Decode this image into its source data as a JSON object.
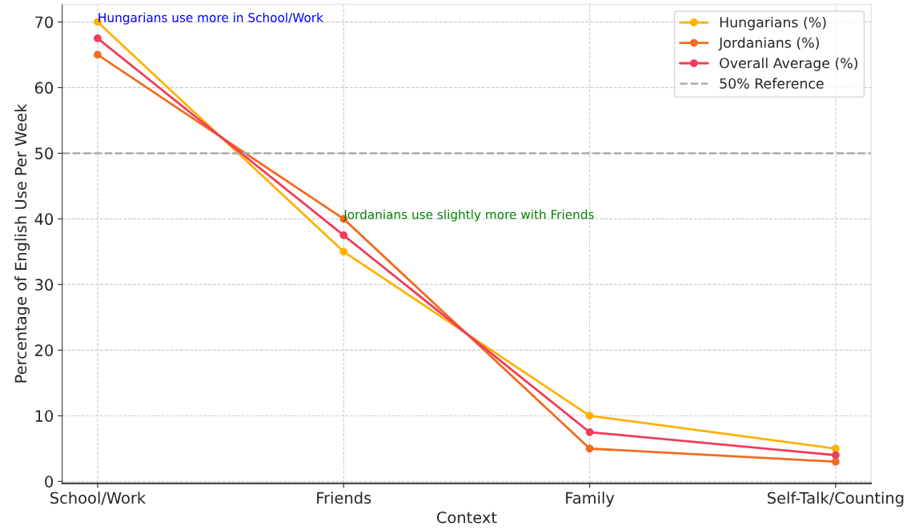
{
  "chart_data": {
    "type": "line",
    "xlabel": "Context",
    "ylabel": "Percentage of English Use Per Week",
    "categories": [
      "School/Work",
      "Friends",
      "Family",
      "Self-Talk/Counting"
    ],
    "series": [
      {
        "name": "Hungarians (%)",
        "color": "#ffb000",
        "values": [
          70,
          35,
          10,
          5
        ]
      },
      {
        "name": "Jordanians (%)",
        "color": "#f26b21",
        "values": [
          65,
          40,
          5,
          3
        ]
      },
      {
        "name": "Overall Average (%)",
        "color": "#f23c5a",
        "values": [
          67.5,
          37.5,
          7.5,
          4
        ]
      }
    ],
    "ylim": [
      -0.3,
      72.7
    ],
    "yticks": [
      0,
      10,
      20,
      30,
      40,
      50,
      60,
      70
    ],
    "ref_lines": [
      {
        "axis": "y",
        "value": 50,
        "label": "50% Reference",
        "color": "#aaaaaa",
        "line_style": "dashed"
      }
    ],
    "annotations": [
      {
        "text": "Hungarians use more in School/Work",
        "x": "School/Work",
        "y": 70
      },
      {
        "text": "Jordanians use slightly more with Friends",
        "x": "Friends",
        "y": 40
      }
    ],
    "grid": true,
    "legend": "top right",
    "marker": "circle",
    "line_style": "solid"
  }
}
